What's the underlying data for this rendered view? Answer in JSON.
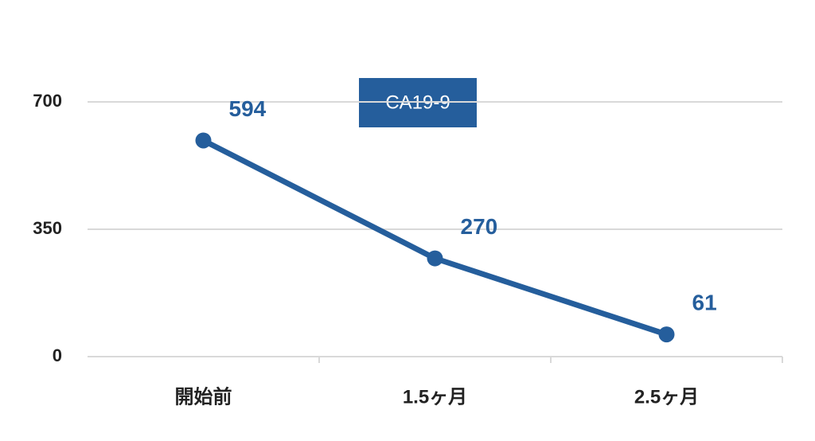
{
  "chart_data": {
    "type": "line",
    "title": "CA19-9",
    "categories": [
      "開始前",
      "1.5ヶ月",
      "2.5ヶ月"
    ],
    "series": [
      {
        "name": "CA19-9",
        "color": "#255e9c",
        "values": [
          594,
          270,
          61
        ]
      }
    ],
    "ylim": [
      0,
      700
    ],
    "yticks": [
      0,
      350,
      700
    ],
    "grid": true
  }
}
